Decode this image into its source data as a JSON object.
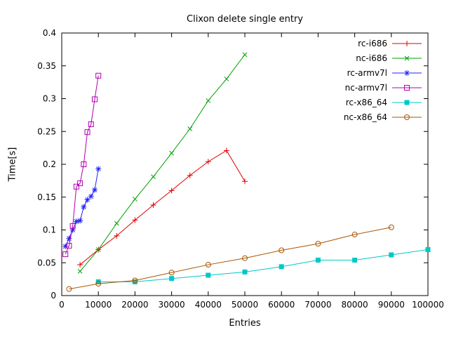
{
  "chart_data": {
    "type": "line",
    "title": "Clixon delete single entry",
    "xlabel": "Entries",
    "ylabel": "Time[s]",
    "xlim": [
      0,
      100000
    ],
    "ylim": [
      0,
      0.4
    ],
    "grid": false,
    "legend_position": "top-right-inside",
    "x_ticks": [
      0,
      10000,
      20000,
      30000,
      40000,
      50000,
      60000,
      70000,
      80000,
      90000,
      100000
    ],
    "x_tick_labels": [
      "0",
      "10000",
      "20000",
      "30000",
      "40000",
      "50000",
      "60000",
      "70000",
      "80000",
      "90000",
      "100000"
    ],
    "y_ticks": [
      0,
      0.05,
      0.1,
      0.15,
      0.2,
      0.25,
      0.3,
      0.35,
      0.4
    ],
    "y_tick_labels": [
      "0",
      "0.05",
      "0.1",
      "0.15",
      "0.2",
      "0.25",
      "0.3",
      "0.35",
      "0.4"
    ],
    "series": [
      {
        "name": "rc-i686",
        "color": "#e00000",
        "marker": "plus",
        "points": [
          [
            5000,
            0.047
          ],
          [
            10000,
            0.07
          ],
          [
            15000,
            0.091
          ],
          [
            20000,
            0.115
          ],
          [
            25000,
            0.138
          ],
          [
            30000,
            0.16
          ],
          [
            35000,
            0.183
          ],
          [
            40000,
            0.204
          ],
          [
            45000,
            0.221
          ],
          [
            50000,
            0.174
          ]
        ]
      },
      {
        "name": "nc-i686",
        "color": "#00a000",
        "marker": "x",
        "points": [
          [
            5000,
            0.037
          ],
          [
            10000,
            0.07
          ],
          [
            15000,
            0.11
          ],
          [
            20000,
            0.147
          ],
          [
            25000,
            0.181
          ],
          [
            30000,
            0.217
          ],
          [
            35000,
            0.254
          ],
          [
            40000,
            0.297
          ],
          [
            45000,
            0.33
          ],
          [
            50000,
            0.367
          ]
        ]
      },
      {
        "name": "rc-armv7l",
        "color": "#2020ff",
        "marker": "asterisk",
        "points": [
          [
            1000,
            0.075
          ],
          [
            2000,
            0.087
          ],
          [
            3000,
            0.1
          ],
          [
            4000,
            0.113
          ],
          [
            5000,
            0.114
          ],
          [
            6000,
            0.135
          ],
          [
            7000,
            0.146
          ],
          [
            8000,
            0.151
          ],
          [
            9000,
            0.161
          ],
          [
            10000,
            0.193
          ]
        ]
      },
      {
        "name": "nc-armv7l",
        "color": "#b000b0",
        "marker": "square-open",
        "points": [
          [
            1000,
            0.063
          ],
          [
            2000,
            0.076
          ],
          [
            3000,
            0.106
          ],
          [
            4000,
            0.166
          ],
          [
            5000,
            0.171
          ],
          [
            6000,
            0.2
          ],
          [
            7000,
            0.249
          ],
          [
            8000,
            0.261
          ],
          [
            9000,
            0.299
          ],
          [
            10000,
            0.335
          ]
        ]
      },
      {
        "name": "rc-x86_64",
        "color": "#00c8c8",
        "marker": "square-filled",
        "points": [
          [
            10000,
            0.021
          ],
          [
            20000,
            0.021
          ],
          [
            30000,
            0.026
          ],
          [
            40000,
            0.031
          ],
          [
            50000,
            0.036
          ],
          [
            60000,
            0.044
          ],
          [
            70000,
            0.054
          ],
          [
            80000,
            0.054
          ],
          [
            90000,
            0.062
          ],
          [
            100000,
            0.07
          ]
        ]
      },
      {
        "name": "nc-x86_64",
        "color": "#aa5500",
        "marker": "circle-open",
        "points": [
          [
            2000,
            0.01
          ],
          [
            10000,
            0.018
          ],
          [
            20000,
            0.023
          ],
          [
            30000,
            0.035
          ],
          [
            40000,
            0.047
          ],
          [
            50000,
            0.057
          ],
          [
            60000,
            0.069
          ],
          [
            70000,
            0.079
          ],
          [
            80000,
            0.093
          ],
          [
            90000,
            0.104
          ]
        ]
      }
    ]
  }
}
